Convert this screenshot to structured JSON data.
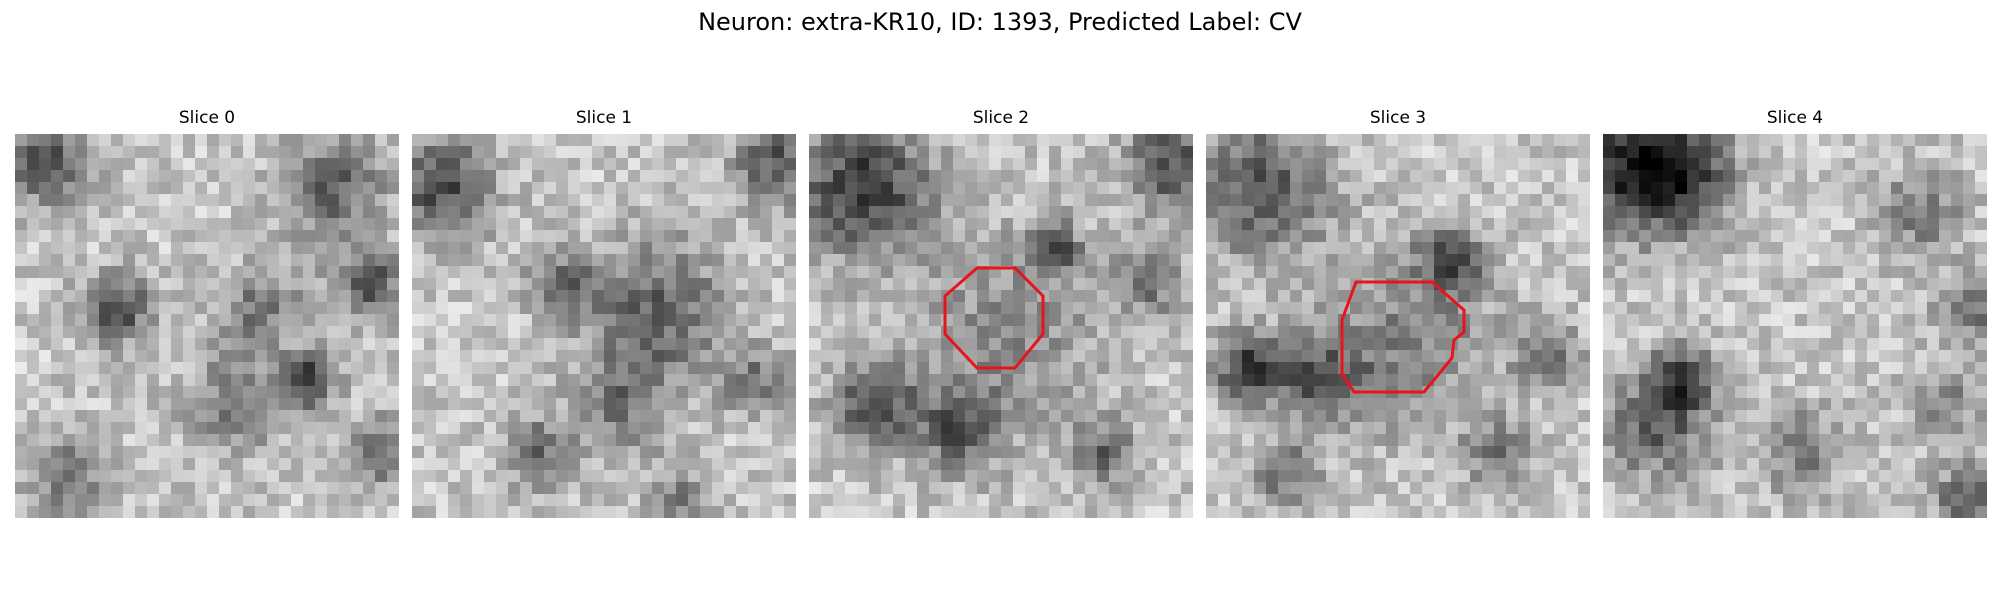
{
  "figure": {
    "title": "Neuron: extra-KR10, ID: 1393, Predicted Label: CV",
    "outline_color": "#e8141c",
    "panels": [
      {
        "title": "Slice 0",
        "has_outline": false
      },
      {
        "title": "Slice 1",
        "has_outline": false
      },
      {
        "title": "Slice 2",
        "has_outline": true
      },
      {
        "title": "Slice 3",
        "has_outline": true
      },
      {
        "title": "Slice 4",
        "has_outline": false
      }
    ]
  }
}
